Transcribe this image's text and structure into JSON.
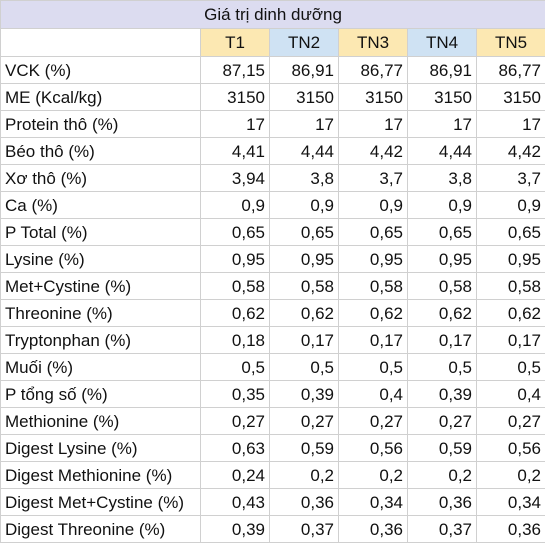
{
  "title": "Giá trị dinh dưỡng",
  "columns": [
    {
      "label": "T1",
      "color": "#fce8b2"
    },
    {
      "label": "TN2",
      "color": "#cfe2f3"
    },
    {
      "label": "TN3",
      "color": "#fce8b2"
    },
    {
      "label": "TN4",
      "color": "#cfe2f3"
    },
    {
      "label": "TN5",
      "color": "#fce8b2"
    }
  ],
  "rows": [
    {
      "label": "VCK (%)",
      "values": [
        "87,15",
        "86,91",
        "86,77",
        "86,91",
        "86,77"
      ]
    },
    {
      "label": "ME (Kcal/kg)",
      "values": [
        "3150",
        "3150",
        "3150",
        "3150",
        "3150"
      ]
    },
    {
      "label": "Protein thô (%)",
      "values": [
        "17",
        "17",
        "17",
        "17",
        "17"
      ]
    },
    {
      "label": "Béo thô (%)",
      "values": [
        "4,41",
        "4,44",
        "4,42",
        "4,44",
        "4,42"
      ]
    },
    {
      "label": "Xơ thô (%)",
      "values": [
        "3,94",
        "3,8",
        "3,7",
        "3,8",
        "3,7"
      ]
    },
    {
      "label": "Ca (%)",
      "values": [
        "0,9",
        "0,9",
        "0,9",
        "0,9",
        "0,9"
      ]
    },
    {
      "label": "P Total (%)",
      "values": [
        "0,65",
        "0,65",
        "0,65",
        "0,65",
        "0,65"
      ]
    },
    {
      "label": "Lysine (%)",
      "values": [
        "0,95",
        "0,95",
        "0,95",
        "0,95",
        "0,95"
      ]
    },
    {
      "label": "Met+Cystine (%)",
      "values": [
        "0,58",
        "0,58",
        "0,58",
        "0,58",
        "0,58"
      ]
    },
    {
      "label": "Threonine (%)",
      "values": [
        "0,62",
        "0,62",
        "0,62",
        "0,62",
        "0,62"
      ]
    },
    {
      "label": "Tryptonphan (%)",
      "values": [
        "0,18",
        "0,17",
        "0,17",
        "0,17",
        "0,17"
      ]
    },
    {
      "label": "Muối (%)",
      "values": [
        "0,5",
        "0,5",
        "0,5",
        "0,5",
        "0,5"
      ]
    },
    {
      "label": "P tổng số (%)",
      "values": [
        "0,35",
        "0,39",
        "0,4",
        "0,39",
        "0,4"
      ]
    },
    {
      "label": "Methionine (%)",
      "values": [
        "0,27",
        "0,27",
        "0,27",
        "0,27",
        "0,27"
      ]
    },
    {
      "label": "Digest Lysine (%)",
      "values": [
        "0,63",
        "0,59",
        "0,56",
        "0,59",
        "0,56"
      ]
    },
    {
      "label": "Digest Methionine (%)",
      "values": [
        "0,24",
        "0,2",
        "0,2",
        "0,2",
        "0,2"
      ]
    },
    {
      "label": "Digest Met+Cystine (%)",
      "values": [
        "0,43",
        "0,36",
        "0,34",
        "0,36",
        "0,34"
      ]
    },
    {
      "label": "Digest Threonine (%)",
      "values": [
        "0,39",
        "0,37",
        "0,36",
        "0,37",
        "0,36"
      ]
    }
  ]
}
